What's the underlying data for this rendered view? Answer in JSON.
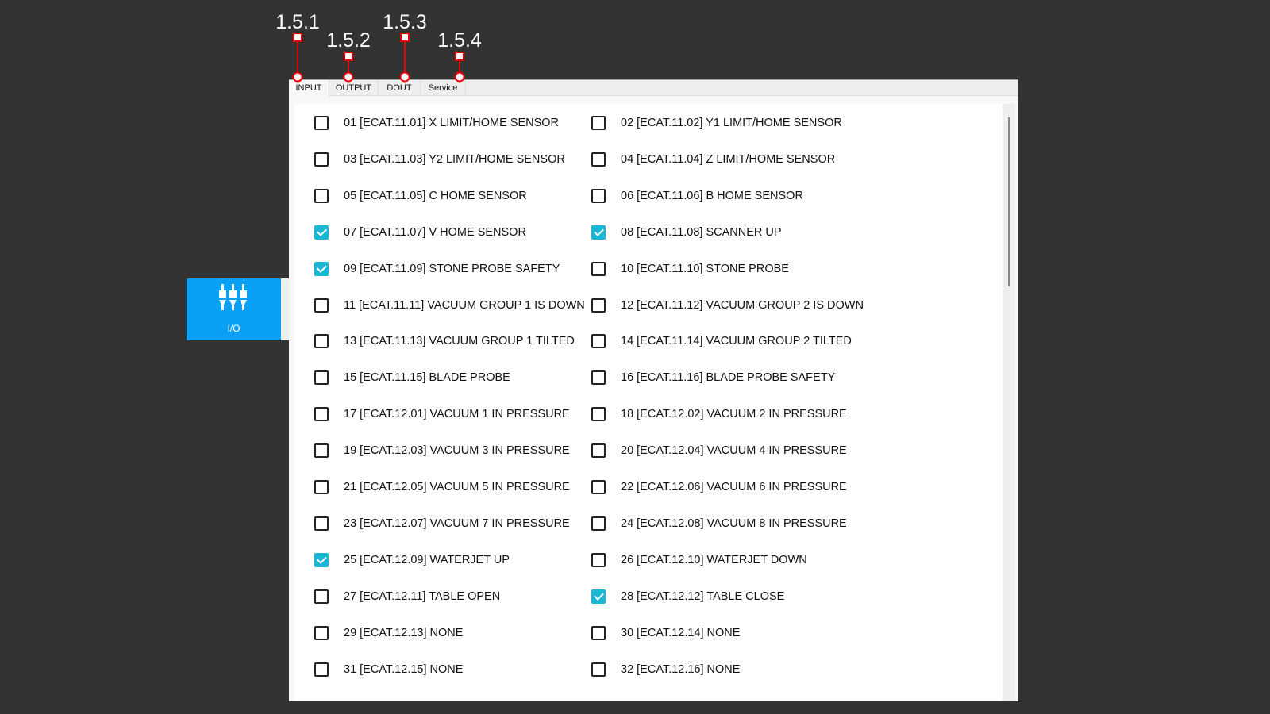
{
  "annotations": [
    "1.5.1",
    "1.5.2",
    "1.5.3",
    "1.5.4"
  ],
  "sidebar": {
    "io_label": "I/O",
    "icon": "plug-connectors-icon"
  },
  "tabs": [
    {
      "label": "INPUT",
      "active": true
    },
    {
      "label": "OUTPUT"
    },
    {
      "label": "DOUT"
    },
    {
      "label": "Service"
    }
  ],
  "accent": "#1ab6d6",
  "inputs": [
    {
      "label": "01  [ECAT.11.01] X LIMIT/HOME SENSOR",
      "checked": false
    },
    {
      "label": "02  [ECAT.11.02] Y1 LIMIT/HOME SENSOR",
      "checked": false
    },
    {
      "label": "03  [ECAT.11.03] Y2 LIMIT/HOME SENSOR",
      "checked": false
    },
    {
      "label": "04  [ECAT.11.04] Z LIMIT/HOME SENSOR",
      "checked": false
    },
    {
      "label": "05  [ECAT.11.05] C HOME SENSOR",
      "checked": false
    },
    {
      "label": "06  [ECAT.11.06] B HOME SENSOR",
      "checked": false
    },
    {
      "label": "07  [ECAT.11.07] V HOME SENSOR",
      "checked": true
    },
    {
      "label": "08  [ECAT.11.08] SCANNER UP",
      "checked": true
    },
    {
      "label": "09  [ECAT.11.09] STONE PROBE SAFETY",
      "checked": true
    },
    {
      "label": "10 [ECAT.11.10] STONE PROBE",
      "checked": false
    },
    {
      "label": "11 [ECAT.11.11] VACUUM GROUP 1 IS DOWN",
      "checked": false
    },
    {
      "label": "12 [ECAT.11.12] VACUUM GROUP 2 IS DOWN",
      "checked": false
    },
    {
      "label": "13 [ECAT.11.13] VACUUM GROUP 1 TILTED",
      "checked": false
    },
    {
      "label": "14 [ECAT.11.14] VACUUM GROUP 2 TILTED",
      "checked": false
    },
    {
      "label": "15 [ECAT.11.15] BLADE PROBE",
      "checked": false
    },
    {
      "label": "16 [ECAT.11.16] BLADE PROBE SAFETY",
      "checked": false
    },
    {
      "label": "17 [ECAT.12.01] VACUUM 1 IN PRESSURE",
      "checked": false
    },
    {
      "label": "18 [ECAT.12.02] VACUUM 2 IN PRESSURE",
      "checked": false
    },
    {
      "label": "19 [ECAT.12.03] VACUUM 3 IN PRESSURE",
      "checked": false
    },
    {
      "label": "20 [ECAT.12.04] VACUUM 4 IN PRESSURE",
      "checked": false
    },
    {
      "label": "21 [ECAT.12.05] VACUUM 5 IN PRESSURE",
      "checked": false
    },
    {
      "label": "22 [ECAT.12.06] VACUUM 6 IN PRESSURE",
      "checked": false
    },
    {
      "label": "23 [ECAT.12.07] VACUUM 7 IN PRESSURE",
      "checked": false
    },
    {
      "label": "24 [ECAT.12.08] VACUUM 8 IN PRESSURE",
      "checked": false
    },
    {
      "label": "25 [ECAT.12.09] WATERJET UP",
      "checked": true
    },
    {
      "label": "26 [ECAT.12.10] WATERJET DOWN",
      "checked": false
    },
    {
      "label": "27 [ECAT.12.11] TABLE OPEN",
      "checked": false
    },
    {
      "label": "28 [ECAT.12.12] TABLE CLOSE",
      "checked": true
    },
    {
      "label": "29 [ECAT.12.13] NONE",
      "checked": false
    },
    {
      "label": "30 [ECAT.12.14] NONE",
      "checked": false
    },
    {
      "label": "31 [ECAT.12.15] NONE",
      "checked": false
    },
    {
      "label": "32 [ECAT.12.16] NONE",
      "checked": false
    }
  ]
}
